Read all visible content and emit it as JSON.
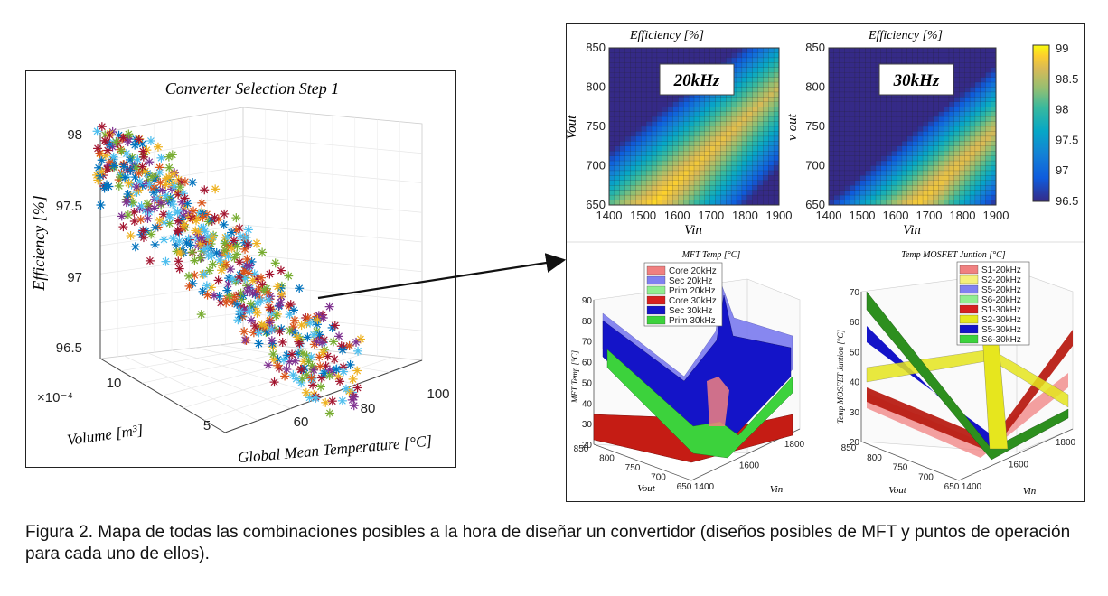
{
  "caption": "Figura 2. Mapa de todas las combinaciones posibles a la hora de diseñar un convertidor (diseños posibles de MFT y puntos de operación para cada uno de ellos).",
  "chart_data": [
    {
      "type": "scatter",
      "title": "Converter Selection Step 1",
      "xlabel": "Global Mean Temperature [°C]",
      "ylabel": "Volume [m³]",
      "zlabel": "Efficiency [%]",
      "x_ticks": [
        "60",
        "80",
        "100"
      ],
      "y_ticks": [
        "5",
        "10"
      ],
      "y_multiplier": "×10⁻⁴",
      "z_ticks": [
        "96.5",
        "97",
        "97.5",
        "98"
      ],
      "zlim": [
        96.4,
        98.1
      ],
      "marker": "*",
      "colors": [
        "#0072bd",
        "#d95319",
        "#edb120",
        "#7e2f8e",
        "#77ac30",
        "#4dbeee",
        "#a2142f"
      ],
      "point_count": 600
    },
    {
      "type": "heatmap",
      "title": "Efficiency [%]",
      "annotation": "20kHz",
      "xlabel": "Vin",
      "ylabel": "Vout",
      "x_ticks": [
        "1400",
        "1500",
        "1600",
        "1700",
        "1800",
        "1900"
      ],
      "y_ticks": [
        "650",
        "700",
        "750",
        "800",
        "850"
      ],
      "xlim": [
        1400,
        1900
      ],
      "ylim": [
        650,
        850
      ]
    },
    {
      "type": "heatmap",
      "title": "Efficiency [%]",
      "annotation": "30kHz",
      "xlabel": "Vin",
      "ylabel": "v out",
      "x_ticks": [
        "1400",
        "1500",
        "1600",
        "1700",
        "1800",
        "1900"
      ],
      "y_ticks": [
        "650",
        "700",
        "750",
        "800",
        "850"
      ],
      "xlim": [
        1400,
        1900
      ],
      "ylim": [
        650,
        850
      ],
      "colorbar": {
        "ticks": [
          "99",
          "98.5",
          "98",
          "97.5",
          "97",
          "96.5"
        ],
        "range": [
          96.5,
          99
        ]
      }
    },
    {
      "type": "area",
      "title": "MFT Temp [°C]",
      "zlabel": "MFT Temp [°C]",
      "xlabel": "Vout",
      "ylabel": "Vin",
      "z_ticks": [
        "20",
        "30",
        "40",
        "50",
        "60",
        "70",
        "80",
        "90"
      ],
      "x_ticks": [
        "850",
        "800",
        "750",
        "700",
        "650"
      ],
      "y_ticks": [
        "1400",
        "1600",
        "1800"
      ],
      "legend": [
        {
          "label": "Core 20kHz",
          "color": "#f08080"
        },
        {
          "label": "Sec 20kHz",
          "color": "#8080f0"
        },
        {
          "label": "Prim 20kHz",
          "color": "#90ee90"
        },
        {
          "label": "Core 30kHz",
          "color": "#d62020"
        },
        {
          "label": "Sec 30kHz",
          "color": "#1414c8"
        },
        {
          "label": "Prim 30kHz",
          "color": "#3cd23c"
        }
      ]
    },
    {
      "type": "area",
      "title": "Temp MOSFET Juntion [°C]",
      "zlabel": "Temp MOSFET Juntion [°C]",
      "xlabel": "Vout",
      "ylabel": "Vin",
      "z_ticks": [
        "20",
        "30",
        "40",
        "50",
        "60",
        "70"
      ],
      "x_ticks": [
        "850",
        "800",
        "750",
        "700",
        "650"
      ],
      "y_ticks": [
        "1400",
        "1600",
        "1800"
      ],
      "legend": [
        {
          "label": "S1-20kHz",
          "color": "#f08080"
        },
        {
          "label": "S2-20kHz",
          "color": "#f5f07a"
        },
        {
          "label": "S5-20kHz",
          "color": "#8080f0"
        },
        {
          "label": "S6-20kHz",
          "color": "#90ee90"
        },
        {
          "label": "S1-30kHz",
          "color": "#d62020"
        },
        {
          "label": "S2-30kHz",
          "color": "#e6e61e"
        },
        {
          "label": "S5-30kHz",
          "color": "#1414c8"
        },
        {
          "label": "S6-30kHz",
          "color": "#3cd23c"
        }
      ]
    }
  ]
}
